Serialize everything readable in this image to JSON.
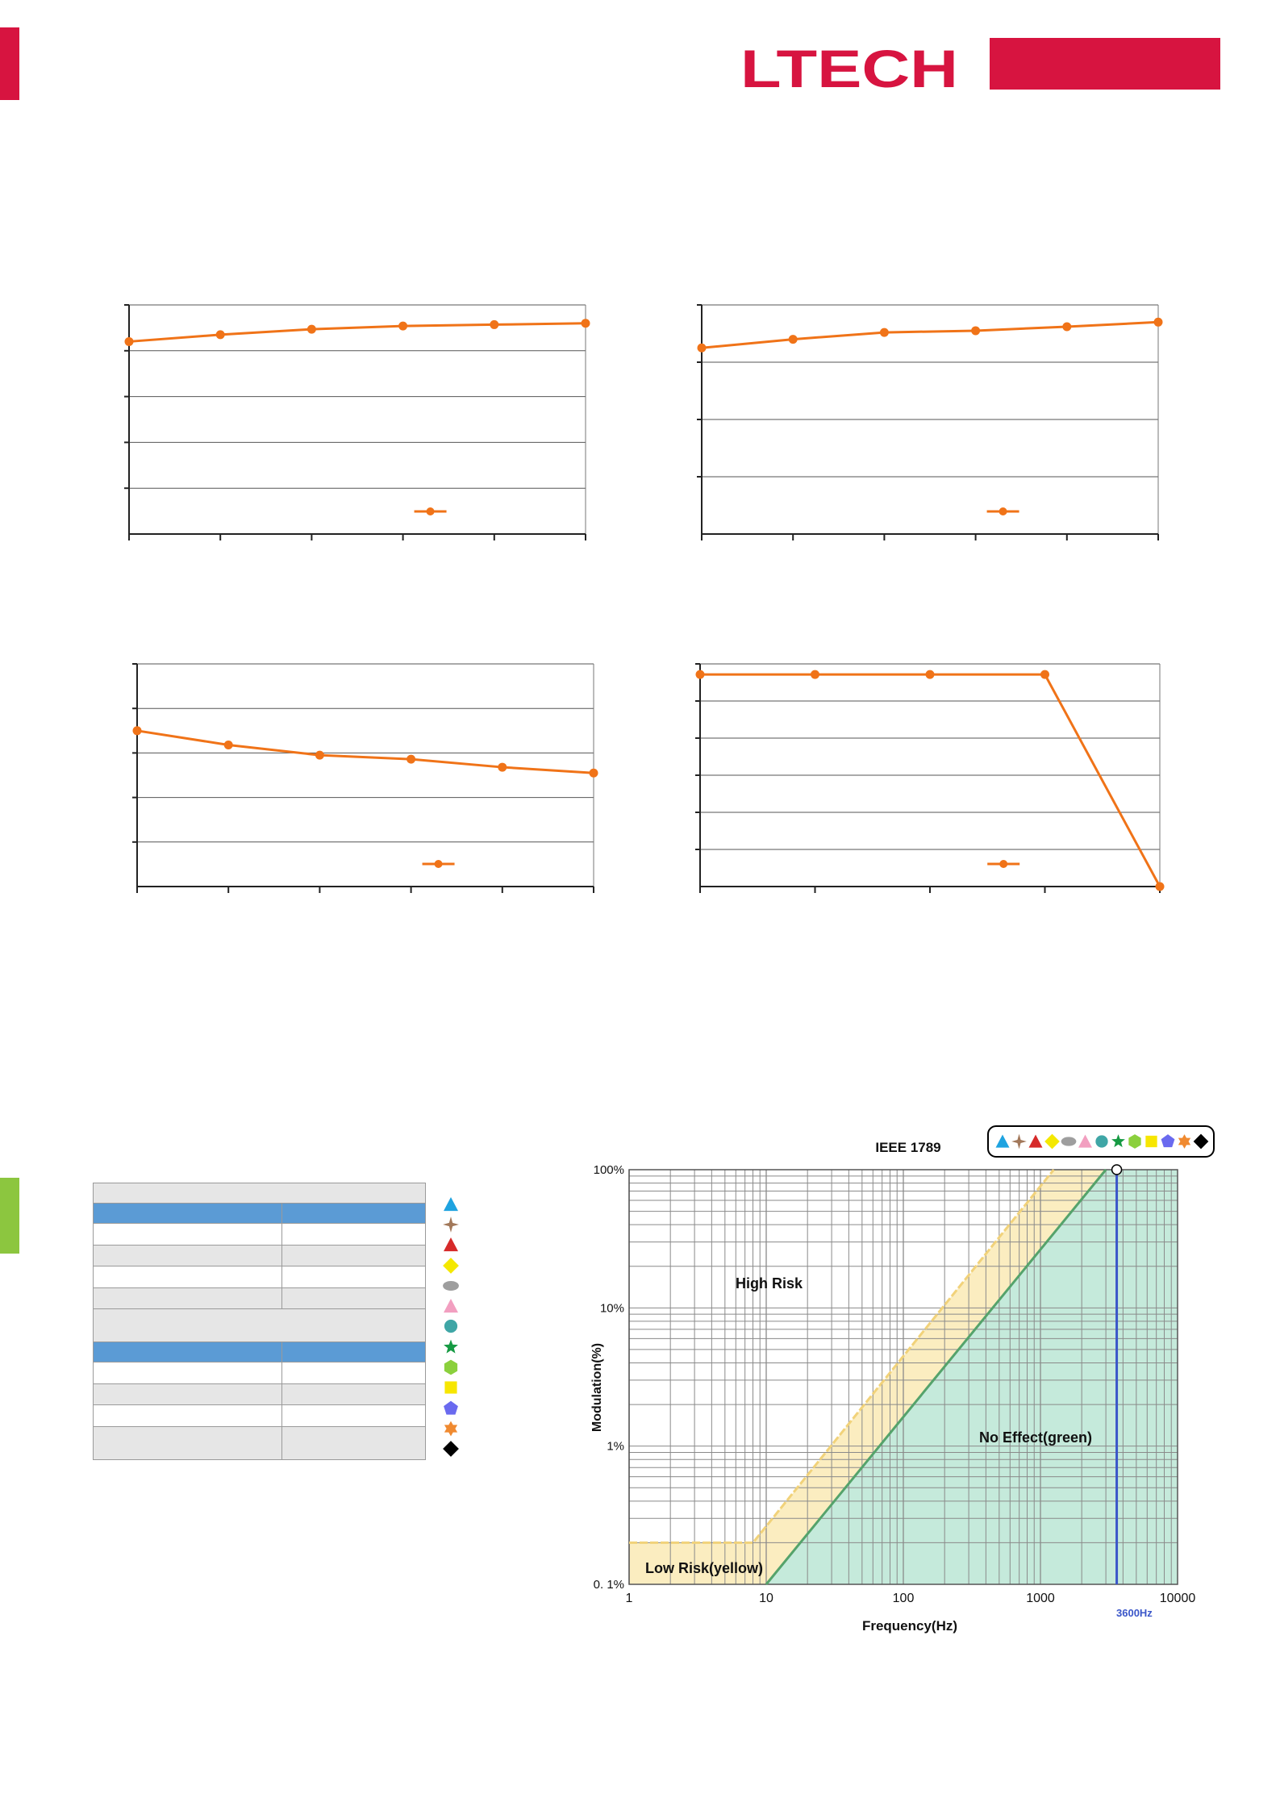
{
  "brand": {
    "logo_text": "LTECH",
    "red": "#d71440",
    "green": "#8cc63f"
  },
  "series_color": "#f07318",
  "chart_data": [
    {
      "type": "line",
      "title": "",
      "xlabel": "",
      "ylabel": "",
      "grid": true,
      "x": [
        0,
        1,
        2,
        3,
        4,
        5
      ],
      "series": [
        {
          "values": [
            4.2,
            4.35,
            4.47,
            4.54,
            4.57,
            4.6
          ]
        }
      ],
      "ylim": [
        0,
        5
      ],
      "legend": "bottom-center"
    },
    {
      "type": "line",
      "title": "",
      "xlabel": "",
      "ylabel": "",
      "grid": true,
      "x": [
        0,
        1,
        2,
        3,
        4,
        5
      ],
      "series": [
        {
          "values": [
            3.25,
            3.4,
            3.52,
            3.55,
            3.62,
            3.7
          ]
        }
      ],
      "ylim": [
        0,
        4
      ],
      "legend": "bottom-center"
    },
    {
      "type": "line",
      "title": "",
      "xlabel": "",
      "ylabel": "",
      "grid": true,
      "x": [
        0,
        1,
        2,
        3,
        4,
        5
      ],
      "series": [
        {
          "values": [
            3.5,
            3.18,
            2.95,
            2.86,
            2.68,
            2.55
          ]
        }
      ],
      "ylim": [
        0,
        5
      ],
      "legend": "bottom-center"
    },
    {
      "type": "line",
      "title": "",
      "xlabel": "",
      "ylabel": "",
      "grid": true,
      "x": [
        0,
        1,
        2,
        3,
        4
      ],
      "series": [
        {
          "values": [
            6.0,
            6.0,
            6.0,
            6.0,
            0
          ]
        }
      ],
      "ylim": [
        0,
        6.3
      ],
      "legend": "bottom-center"
    },
    {
      "type": "line",
      "title": "IEEE 1789",
      "xlabel": "Frequency(Hz)",
      "ylabel": "Modulation(%)",
      "x_scale": "log",
      "y_scale": "log",
      "xlim": [
        1,
        10000
      ],
      "ylim": [
        0.1,
        100
      ],
      "x_ticks": [
        "1",
        "10",
        "100",
        "1000",
        "10000"
      ],
      "y_ticks": [
        "0. 1%",
        "1%",
        "10%",
        "100%"
      ],
      "highlight": {
        "label": "3600Hz",
        "x": 3600
      },
      "regions": [
        {
          "label": "High Risk",
          "color": "#ffffff"
        },
        {
          "label": "Low Risk(yellow)",
          "color": "#fbedc0"
        },
        {
          "label": "No Effect(green)",
          "color": "#c5eadb"
        }
      ],
      "legend": "top-right"
    }
  ],
  "legend_markers": [
    {
      "icon": "triangle-blue",
      "color": "#1fa3e0"
    },
    {
      "icon": "cross-brown",
      "color": "#a2785a"
    },
    {
      "icon": "triangle-red",
      "color": "#d62a2a"
    },
    {
      "icon": "diamond-yellow",
      "color": "#f4e800"
    },
    {
      "icon": "ellipse-gray",
      "color": "#9e9e9e"
    },
    {
      "icon": "triangle-pink",
      "color": "#f29fc0"
    },
    {
      "icon": "circle-teal",
      "color": "#3fa6a6"
    },
    {
      "icon": "star-green",
      "color": "#169a43"
    },
    {
      "icon": "hexagon-lightgreen",
      "color": "#8bd03d"
    },
    {
      "icon": "square-yellow",
      "color": "#f7e600"
    },
    {
      "icon": "pentagon-violet",
      "color": "#6a6aef"
    },
    {
      "icon": "star6-orange",
      "color": "#f08a30"
    },
    {
      "icon": "diamond-black",
      "color": "#000000"
    }
  ]
}
